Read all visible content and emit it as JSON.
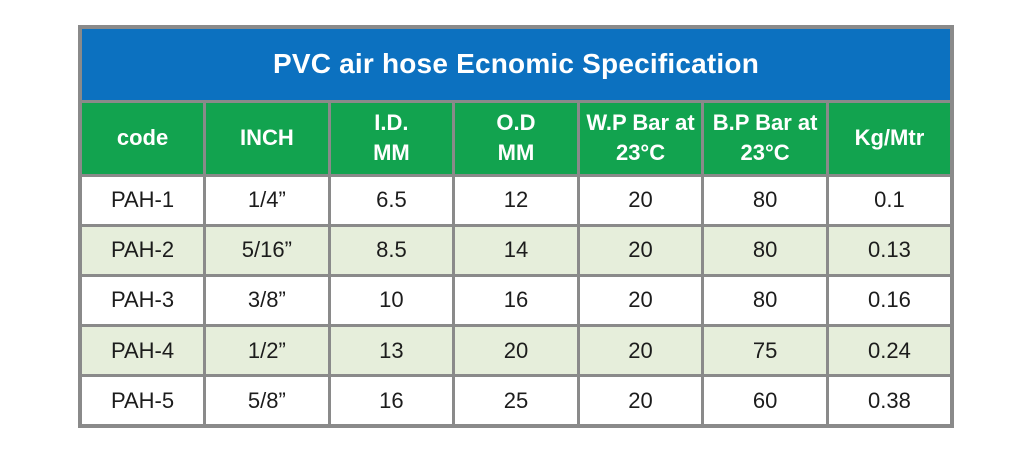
{
  "title": "PVC air hose Ecnomic Specification",
  "colors": {
    "title_bg": "#0c71c0",
    "header_bg": "#12a34f",
    "row_alt_bg": "#e6eedb",
    "border": "#8a8a8a",
    "header_text": "#ffffff",
    "cell_text": "#1c1c1c",
    "page_bg": "#ffffff"
  },
  "table": {
    "columns": [
      {
        "line1": "code",
        "line2": ""
      },
      {
        "line1": "INCH",
        "line2": ""
      },
      {
        "line1": "I.D.",
        "line2": "MM"
      },
      {
        "line1": "O.D",
        "line2": "MM"
      },
      {
        "line1": "W.P Bar at",
        "line2": "23°C"
      },
      {
        "line1": "B.P Bar at",
        "line2": "23°C"
      },
      {
        "line1": "Kg/Mtr",
        "line2": ""
      }
    ],
    "rows": [
      [
        "PAH-1",
        "1/4”",
        "6.5",
        "12",
        "20",
        "80",
        "0.1"
      ],
      [
        "PAH-2",
        "5/16”",
        "8.5",
        "14",
        "20",
        "80",
        "0.13"
      ],
      [
        "PAH-3",
        "3/8”",
        "10",
        "16",
        "20",
        "80",
        "0.16"
      ],
      [
        "PAH-4",
        "1/2”",
        "13",
        "20",
        "20",
        "75",
        "0.24"
      ],
      [
        "PAH-5",
        "5/8”",
        "16",
        "25",
        "20",
        "60",
        "0.38"
      ]
    ]
  }
}
